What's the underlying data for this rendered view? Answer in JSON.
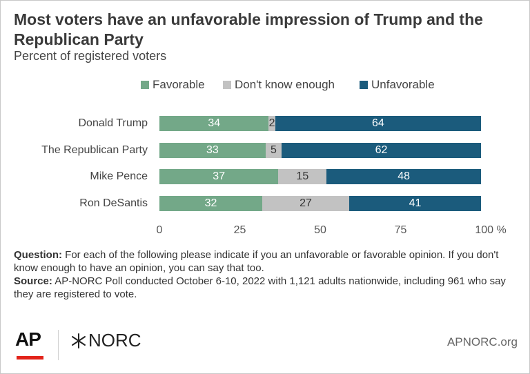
{
  "header": {
    "title": "Most voters have an unfavorable impression of Trump and the Republican Party",
    "subtitle": "Percent of registered voters"
  },
  "colors": {
    "favorable": "#73a888",
    "dont_know": "#c2c2c2",
    "unfavorable": "#1b5b7c"
  },
  "chart_data": {
    "type": "bar",
    "orientation": "horizontal",
    "stacked": true,
    "categories": [
      "Donald Trump",
      "The Republican Party",
      "Mike Pence",
      "Ron DeSantis"
    ],
    "series": [
      {
        "name": "Favorable",
        "values": [
          34,
          33,
          37,
          32
        ]
      },
      {
        "name": "Don't know enough",
        "values": [
          2,
          5,
          15,
          27
        ]
      },
      {
        "name": "Unfavorable",
        "values": [
          64,
          62,
          48,
          41
        ]
      }
    ],
    "xlim": [
      0,
      100
    ],
    "xticks": [
      "0",
      "25",
      "50",
      "75",
      "100 %"
    ],
    "legend_position": "top-center",
    "grid": false
  },
  "notes": {
    "question_label": "Question:",
    "question_text": " For each of the following please indicate if you an unfavorable or favorable opinion.  If you don't know enough to have an opinion, you can say that too.",
    "source_label": "Source:",
    "source_text": " AP-NORC Poll conducted October 6-10, 2022 with 1,121 adults nationwide, including 961 who say they are registered to vote."
  },
  "footer": {
    "ap_logo": "AP",
    "norc_logo": "NORC",
    "site": "APNORC.org"
  }
}
